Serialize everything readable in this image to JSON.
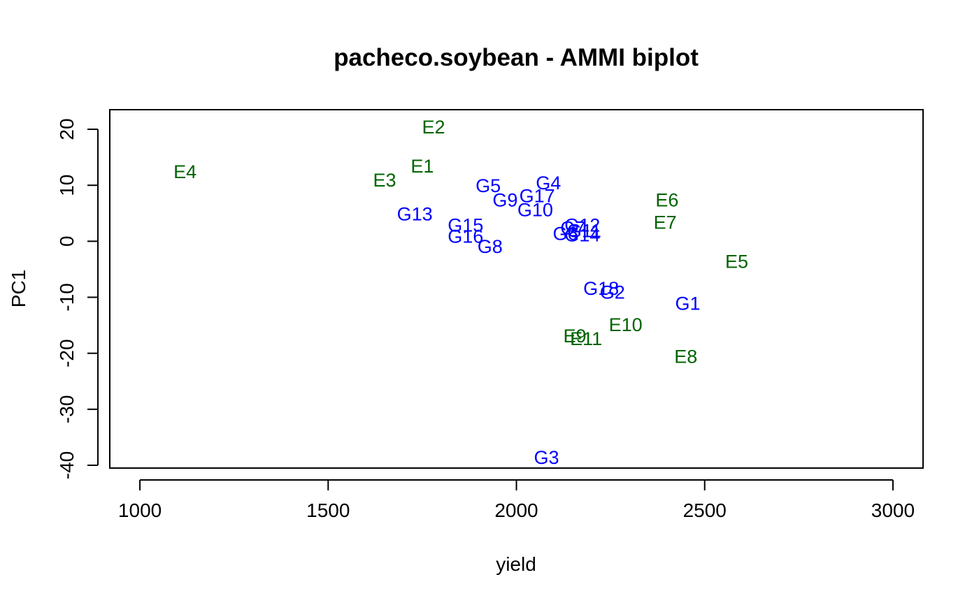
{
  "chart_data": {
    "type": "scatter",
    "title": "pacheco.soybean - AMMI biplot",
    "xlabel": "yield",
    "ylabel": "PC1",
    "xlim": [
      920,
      3080
    ],
    "ylim": [
      -40.5,
      23.5
    ],
    "xticks": [
      1000,
      1500,
      2000,
      2500,
      3000
    ],
    "yticks": [
      -40,
      -30,
      -20,
      -10,
      0,
      10,
      20
    ],
    "grid": false,
    "series": [
      {
        "name": "",
        "color": "#006400",
        "points": [
          {
            "label": "E1",
            "x": 1750,
            "y": 13.5
          },
          {
            "label": "E2",
            "x": 1780,
            "y": 20.5
          },
          {
            "label": "E3",
            "x": 1650,
            "y": 11.0
          },
          {
            "label": "E4",
            "x": 1120,
            "y": 12.5
          },
          {
            "label": "E5",
            "x": 2585,
            "y": -3.5
          },
          {
            "label": "E6",
            "x": 2400,
            "y": 7.5
          },
          {
            "label": "E7",
            "x": 2395,
            "y": 3.5
          },
          {
            "label": "E8",
            "x": 2450,
            "y": -20.5
          },
          {
            "label": "E9",
            "x": 2155,
            "y": -16.8
          },
          {
            "label": "E10",
            "x": 2290,
            "y": -14.8
          },
          {
            "label": "E11",
            "x": 2185,
            "y": -17.3
          }
        ]
      },
      {
        "name": "",
        "color": "#0000ff",
        "points": [
          {
            "label": "G1",
            "x": 2455,
            "y": -11.0
          },
          {
            "label": "G2",
            "x": 2255,
            "y": -9.0
          },
          {
            "label": "G3",
            "x": 2080,
            "y": -38.5
          },
          {
            "label": "G4",
            "x": 2085,
            "y": 10.5
          },
          {
            "label": "G5",
            "x": 1925,
            "y": 10.0
          },
          {
            "label": "G6",
            "x": 2130,
            "y": 1.5
          },
          {
            "label": "G7",
            "x": 2150,
            "y": 2.5
          },
          {
            "label": "G8",
            "x": 1930,
            "y": -0.8
          },
          {
            "label": "G9",
            "x": 1970,
            "y": 7.5
          },
          {
            "label": "G10",
            "x": 2050,
            "y": 5.7
          },
          {
            "label": "G11",
            "x": 2180,
            "y": 2.0
          },
          {
            "label": "G12",
            "x": 2175,
            "y": 3.0
          },
          {
            "label": "G13",
            "x": 1730,
            "y": 5.0
          },
          {
            "label": "G14",
            "x": 2175,
            "y": 1.2
          },
          {
            "label": "G15",
            "x": 1865,
            "y": 3.0
          },
          {
            "label": "G16",
            "x": 1865,
            "y": 1.0
          },
          {
            "label": "G17",
            "x": 2055,
            "y": 8.2
          },
          {
            "label": "G18",
            "x": 2225,
            "y": -8.3
          }
        ]
      }
    ]
  }
}
